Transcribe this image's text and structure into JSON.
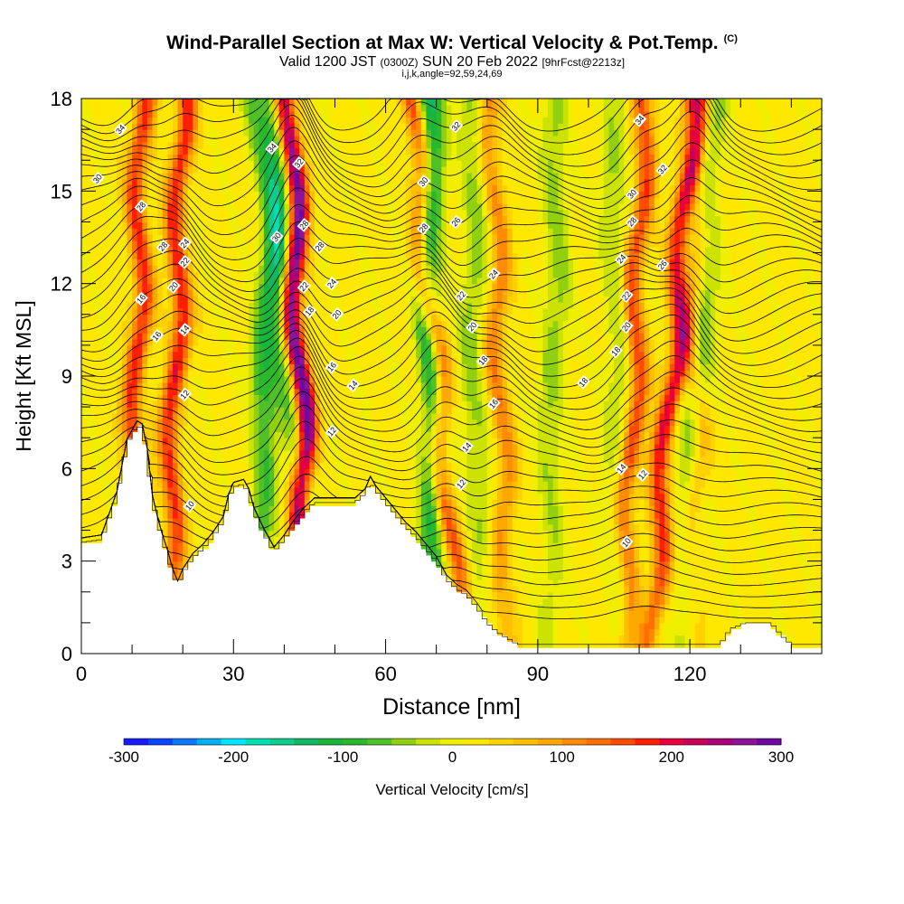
{
  "header": {
    "title": "Wind-Parallel Section at Max W: Vertical Velocity & Pot.Temp.",
    "copyright": "(C)",
    "valid_prefix": "Valid 1200 JST",
    "valid_utc": "(0300Z)",
    "valid_date": "SUN 20 Feb 2022",
    "forecast": "[9hrFcst@2213z]",
    "grid_info": "i,j,k,angle=92,59,24,69"
  },
  "chart_data": {
    "type": "heatmap",
    "title": "Wind-Parallel Section at Max W: Vertical Velocity & Pot.Temp.",
    "xlabel": "Distance [nm]",
    "ylabel": "Height [Kft MSL]",
    "xlim": [
      0,
      146
    ],
    "ylim": [
      0,
      18
    ],
    "x_ticks": [
      "0",
      "30",
      "60",
      "90",
      "120"
    ],
    "x_tick_values": [
      0,
      30,
      60,
      90,
      120
    ],
    "y_ticks": [
      "0",
      "3",
      "6",
      "9",
      "12",
      "15",
      "18"
    ],
    "y_tick_values": [
      0,
      3,
      6,
      9,
      12,
      15,
      18
    ],
    "colorbar": {
      "label": "Vertical Velocity [cm/s]",
      "range": [
        -300,
        300
      ],
      "tick_labels": [
        "-300",
        "-200",
        "-100",
        "0",
        "100",
        "200",
        "300"
      ],
      "tick_values": [
        -300,
        -200,
        -100,
        0,
        100,
        200,
        300
      ],
      "colors": [
        "#1a1aff",
        "#0a46ff",
        "#0a78ff",
        "#00b0f0",
        "#00e6ff",
        "#00e0b4",
        "#10cc8c",
        "#10b864",
        "#18b43c",
        "#2cb82c",
        "#50c028",
        "#90d010",
        "#cce200",
        "#f0ef00",
        "#ffe800",
        "#ffd200",
        "#ffbe00",
        "#ffa800",
        "#ff8c00",
        "#ff6e00",
        "#ff4c00",
        "#ff1e00",
        "#e6003c",
        "#c8005a",
        "#aa0078",
        "#8c1496",
        "#6e0aa0"
      ]
    },
    "updraft_bands": [
      {
        "x_surface": 10,
        "shift": 2,
        "peak": 160
      },
      {
        "x_surface": 17,
        "shift": 3,
        "peak": 170
      },
      {
        "x_surface": 45,
        "shift": -4,
        "peak": 300
      },
      {
        "x_surface": 75,
        "shift": -10,
        "peak": 180
      },
      {
        "x_surface": 84,
        "shift": -3,
        "peak": 100
      },
      {
        "x_surface": 107,
        "shift": 4,
        "peak": 150
      },
      {
        "x_surface": 112,
        "shift": 9,
        "peak": 190
      },
      {
        "x_surface": 121,
        "shift": 0,
        "peak": 70
      }
    ],
    "downdraft_bands": [
      {
        "x_surface": 34,
        "shift": 5,
        "peak": -110
      },
      {
        "x_surface": 47,
        "shift": -12,
        "peak": -80
      },
      {
        "x_surface": 70,
        "shift": -2,
        "peak": -160
      },
      {
        "x_surface": 78,
        "shift": -1,
        "peak": -60
      },
      {
        "x_surface": 92,
        "shift": 2,
        "peak": -60
      },
      {
        "x_surface": 106,
        "shift": -1,
        "peak": -50
      },
      {
        "x_surface": 118,
        "shift": 7,
        "peak": -70
      }
    ],
    "terrain": [
      [
        0,
        3.6
      ],
      [
        4,
        3.7
      ],
      [
        7,
        5.1
      ],
      [
        9,
        6.8
      ],
      [
        11,
        7.4
      ],
      [
        12,
        7.3
      ],
      [
        13,
        6.5
      ],
      [
        14,
        5.0
      ],
      [
        15,
        4.3
      ],
      [
        16,
        3.7
      ],
      [
        17,
        3.2
      ],
      [
        18,
        2.6
      ],
      [
        19,
        2.2
      ],
      [
        20,
        2.6
      ],
      [
        22,
        3.1
      ],
      [
        24,
        3.4
      ],
      [
        26,
        3.8
      ],
      [
        28,
        4.3
      ],
      [
        29,
        5.0
      ],
      [
        30,
        5.4
      ],
      [
        32,
        5.5
      ],
      [
        33,
        5.2
      ],
      [
        34,
        4.6
      ],
      [
        36,
        3.9
      ],
      [
        37,
        3.6
      ],
      [
        38,
        3.3
      ],
      [
        40,
        3.7
      ],
      [
        42,
        4.2
      ],
      [
        44,
        4.6
      ],
      [
        46,
        4.9
      ],
      [
        50,
        4.9
      ],
      [
        54,
        4.9
      ],
      [
        56,
        5.2
      ],
      [
        57,
        5.6
      ],
      [
        58,
        5.3
      ],
      [
        60,
        4.9
      ],
      [
        62,
        4.5
      ],
      [
        64,
        4.1
      ],
      [
        66,
        3.8
      ],
      [
        68,
        3.4
      ],
      [
        70,
        3.0
      ],
      [
        72,
        2.4
      ],
      [
        74,
        2.1
      ],
      [
        76,
        1.9
      ],
      [
        78,
        1.5
      ],
      [
        80,
        1.0
      ],
      [
        82,
        0.7
      ],
      [
        84,
        0.5
      ],
      [
        86,
        0.3
      ],
      [
        100,
        0.3
      ],
      [
        126,
        0.3
      ],
      [
        128,
        0.8
      ],
      [
        131,
        1.0
      ],
      [
        136,
        1.0
      ],
      [
        138,
        0.6
      ],
      [
        140,
        0.3
      ],
      [
        146,
        0.3
      ]
    ],
    "isentrope_labels": [
      "10",
      "12",
      "14",
      "16",
      "18",
      "20",
      "22",
      "24",
      "26",
      "28",
      "30",
      "32",
      "34"
    ],
    "isentrope_label_positions": [
      {
        "text": "34",
        "x": 7.7,
        "y": 17.0
      },
      {
        "text": "30",
        "x": 3.2,
        "y": 15.4
      },
      {
        "text": "28",
        "x": 11.8,
        "y": 14.5
      },
      {
        "text": "28",
        "x": 16.1,
        "y": 13.2
      },
      {
        "text": "24",
        "x": 20.4,
        "y": 13.3
      },
      {
        "text": "22",
        "x": 20.4,
        "y": 12.7
      },
      {
        "text": "20",
        "x": 18.2,
        "y": 11.9
      },
      {
        "text": "16",
        "x": 11.8,
        "y": 11.5
      },
      {
        "text": "16",
        "x": 14.9,
        "y": 10.3
      },
      {
        "text": "14",
        "x": 20.4,
        "y": 10.5
      },
      {
        "text": "12",
        "x": 20.4,
        "y": 8.4
      },
      {
        "text": "10",
        "x": 21.4,
        "y": 4.8
      },
      {
        "text": "34",
        "x": 37.6,
        "y": 16.4
      },
      {
        "text": "32",
        "x": 42.9,
        "y": 15.9
      },
      {
        "text": "30",
        "x": 38.5,
        "y": 13.5
      },
      {
        "text": "28",
        "x": 43.9,
        "y": 13.9
      },
      {
        "text": "28",
        "x": 47.0,
        "y": 13.2
      },
      {
        "text": "24",
        "x": 49.4,
        "y": 12.0
      },
      {
        "text": "22",
        "x": 43.9,
        "y": 11.9
      },
      {
        "text": "20",
        "x": 50.4,
        "y": 11.0
      },
      {
        "text": "18",
        "x": 45.0,
        "y": 11.1
      },
      {
        "text": "16",
        "x": 49.4,
        "y": 9.3
      },
      {
        "text": "14",
        "x": 53.6,
        "y": 8.7
      },
      {
        "text": "12",
        "x": 49.4,
        "y": 7.2
      },
      {
        "text": "32",
        "x": 73.9,
        "y": 17.1
      },
      {
        "text": "30",
        "x": 67.5,
        "y": 15.3
      },
      {
        "text": "28",
        "x": 67.5,
        "y": 13.8
      },
      {
        "text": "26",
        "x": 73.9,
        "y": 14.0
      },
      {
        "text": "24",
        "x": 81.3,
        "y": 12.3
      },
      {
        "text": "22",
        "x": 74.9,
        "y": 11.6
      },
      {
        "text": "20",
        "x": 77.1,
        "y": 10.6
      },
      {
        "text": "18",
        "x": 79.2,
        "y": 9.5
      },
      {
        "text": "16",
        "x": 81.3,
        "y": 8.1
      },
      {
        "text": "14",
        "x": 76.0,
        "y": 6.7
      },
      {
        "text": "12",
        "x": 74.9,
        "y": 5.5
      },
      {
        "text": "18",
        "x": 99.0,
        "y": 8.8
      },
      {
        "text": "34",
        "x": 110.1,
        "y": 17.3
      },
      {
        "text": "32",
        "x": 114.6,
        "y": 15.7
      },
      {
        "text": "30",
        "x": 108.6,
        "y": 14.9
      },
      {
        "text": "28",
        "x": 108.6,
        "y": 14.0
      },
      {
        "text": "26",
        "x": 114.6,
        "y": 12.6
      },
      {
        "text": "24",
        "x": 106.5,
        "y": 12.8
      },
      {
        "text": "22",
        "x": 107.5,
        "y": 11.6
      },
      {
        "text": "20",
        "x": 107.5,
        "y": 10.6
      },
      {
        "text": "18",
        "x": 105.4,
        "y": 9.8
      },
      {
        "text": "14",
        "x": 106.5,
        "y": 6.0
      },
      {
        "text": "12",
        "x": 110.7,
        "y": 5.8
      },
      {
        "text": "10",
        "x": 107.5,
        "y": 3.6
      }
    ]
  }
}
